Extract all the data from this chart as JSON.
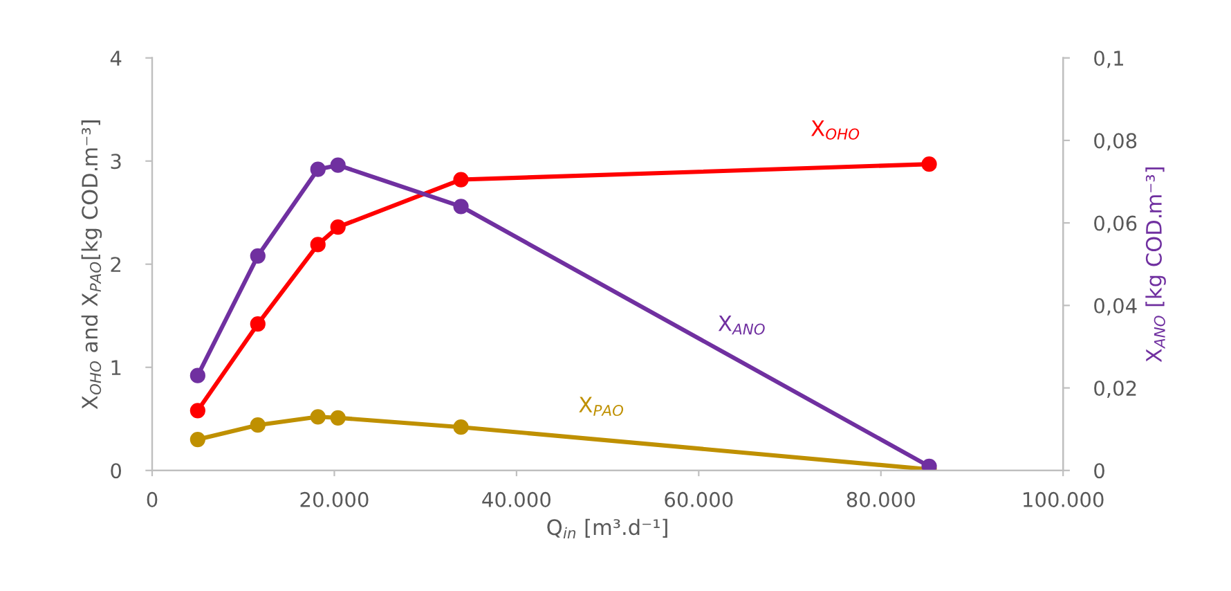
{
  "chart_data": {
    "type": "line",
    "xlabel": "Q$_{in}$ [m³.d⁻¹]",
    "ylabel": "X$_{OHO}$ and X$_{PAO}$[kg COD.m⁻³]",
    "y2label": "X$_{ANO}$ [kg COD.m⁻³]",
    "x": [
      5000,
      11600,
      18200,
      20400,
      33900,
      85300
    ],
    "series": [
      {
        "name": "X$_{OHO}$",
        "color": "#ff0000",
        "values": [
          0.58,
          1.42,
          2.19,
          2.36,
          2.82,
          2.97
        ]
      },
      {
        "name": "X$_{ANO}$",
        "color": "#7030a0",
        "axis": "y2",
        "values": [
          0.023,
          0.052,
          0.073,
          0.074,
          0.064,
          0.001
        ]
      },
      {
        "name": "X$_{PAO}$",
        "color": "#bf9000",
        "values": [
          0.3,
          0.44,
          0.52,
          0.51,
          0.42,
          0.01
        ]
      }
    ],
    "xlim": [
      0,
      100000
    ],
    "xticks": [
      0,
      {
        "value": 20000,
        "label": "20.000"
      },
      {
        "value": 40000,
        "label": "40.000"
      },
      {
        "value": 60000,
        "label": "60.000"
      },
      {
        "value": 80000,
        "label": "80.000"
      },
      {
        "value": 100000,
        "label": "100.000"
      }
    ],
    "ylim": [
      0,
      4
    ],
    "yticks": [
      0,
      1,
      2,
      3,
      4
    ],
    "y2lim": [
      0,
      0.1
    ],
    "y2ticks": [
      0,
      {
        "value": 0.02,
        "label": "0,02"
      },
      {
        "value": 0.04,
        "label": "0,04"
      },
      {
        "value": 0.06,
        "label": "0,06"
      },
      {
        "value": 0.08,
        "label": "0,08"
      },
      {
        "value": 0.1,
        "label": "0,1"
      }
    ],
    "marker": "circle",
    "line_style": "solid",
    "grid": false,
    "legend": false
  }
}
